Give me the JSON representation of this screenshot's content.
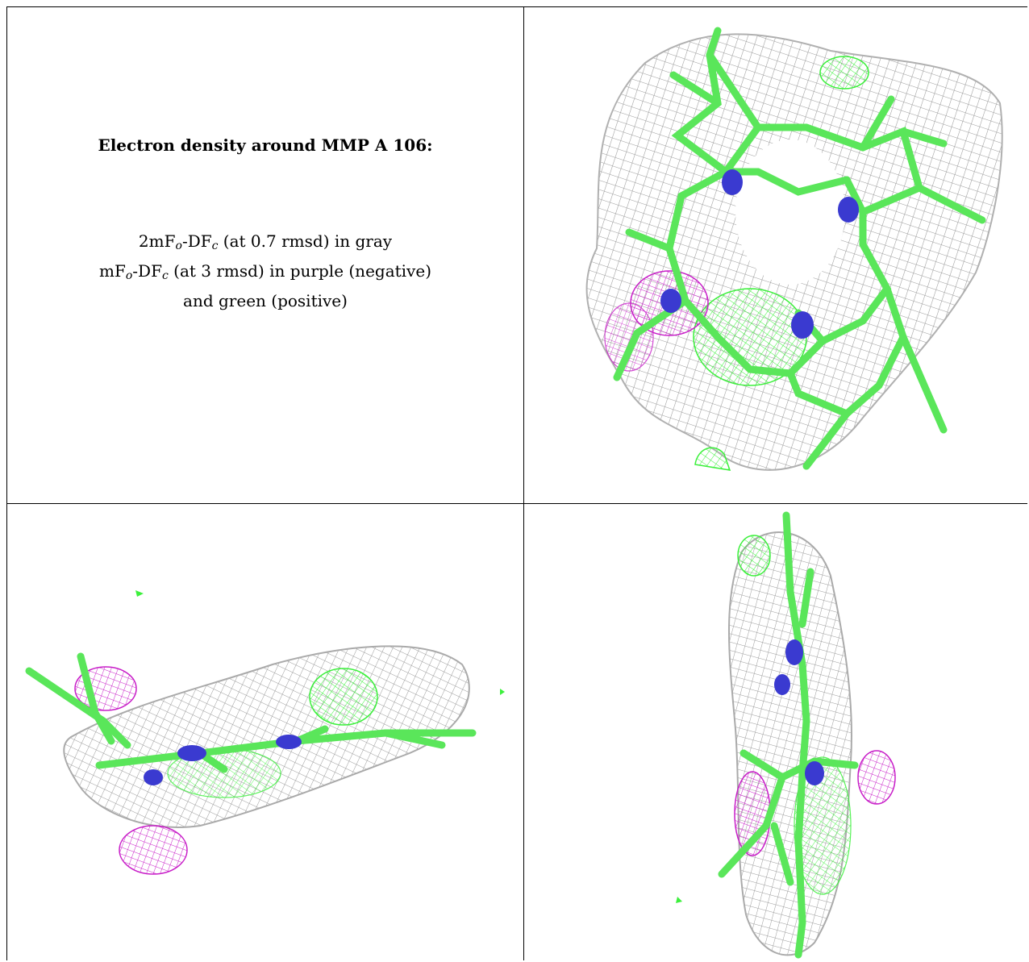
{
  "caption": {
    "heading": "Electron density around MMP A 106:",
    "line1": {
      "pre": "2mF",
      "sub1": "o",
      "mid": "-DF",
      "sub2": "c",
      "post": " (at 0.7 rmsd) in gray"
    },
    "line2": {
      "pre": "mF",
      "sub1": "o",
      "mid": "-DF",
      "sub2": "c",
      "post": " (at 3 rmsd) in purple (negative)"
    },
    "line3": "and green (positive)"
  },
  "colors": {
    "mesh_2fofc": "#9a9a9a",
    "positive": "#3cf03c",
    "negative": "#c81ec8",
    "nitrogen": "#3a3ad0",
    "carbon": "#5ae65a"
  },
  "views": [
    "top-view",
    "side-view-horizontal",
    "side-view-vertical"
  ]
}
